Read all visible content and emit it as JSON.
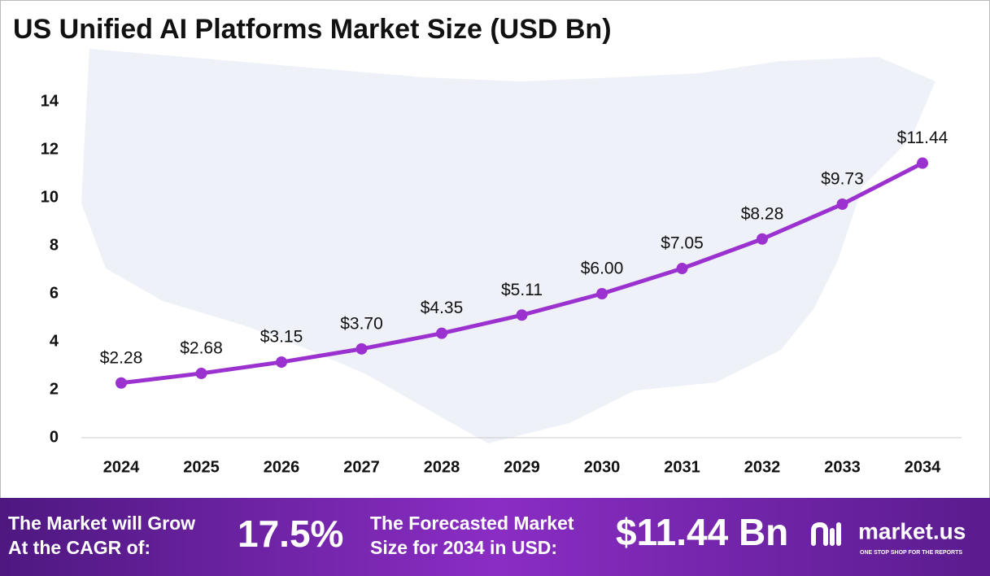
{
  "chart_data": {
    "type": "line",
    "title": "US Unified AI Platforms Market Size (USD Bn)",
    "categories": [
      "2024",
      "2025",
      "2026",
      "2027",
      "2028",
      "2029",
      "2030",
      "2031",
      "2032",
      "2033",
      "2034"
    ],
    "series": [
      {
        "color": "#9b32cf",
        "values": [
          2.28,
          2.68,
          3.15,
          3.7,
          4.35,
          5.11,
          6.0,
          7.05,
          8.28,
          9.73,
          11.44
        ],
        "value_labels": [
          "$2.28",
          "$2.68",
          "$3.15",
          "$3.70",
          "$4.35",
          "$5.11",
          "$6.00",
          "$7.05",
          "$8.28",
          "$9.73",
          "$11.44"
        ]
      }
    ],
    "ylim": [
      0,
      14
    ],
    "yticks": [
      0,
      2,
      4,
      6,
      8,
      10,
      12,
      14
    ],
    "grid": false
  },
  "footer": {
    "cagr_text": [
      "The Market will Grow",
      "At the CAGR of:"
    ],
    "cagr_value": "17.5%",
    "forecast_text": [
      "The Forecasted Market",
      "Size for 2034 in USD:"
    ],
    "forecast_value": "$11.44 Bn",
    "brand": "market.us",
    "tagline": "ONE STOP SHOP FOR THE REPORTS"
  }
}
